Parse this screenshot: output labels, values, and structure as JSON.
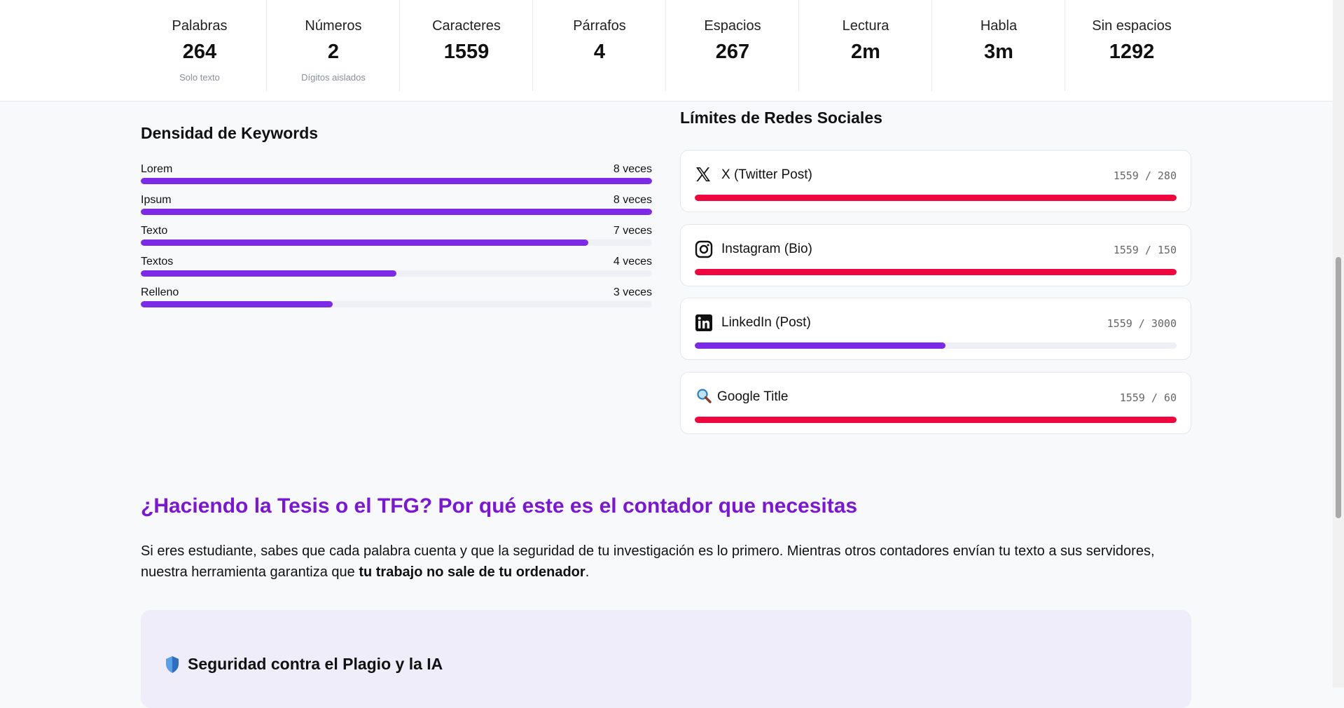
{
  "stats": [
    {
      "label": "Palabras",
      "value": 264,
      "note": "Solo texto"
    },
    {
      "label": "Números",
      "value": 2,
      "note": "Dígitos aislados"
    },
    {
      "label": "Caracteres",
      "value": 1559
    },
    {
      "label": "Párrafos",
      "value": 4
    },
    {
      "label": "Espacios",
      "value": 267
    },
    {
      "label": "Lectura",
      "value": "2m"
    },
    {
      "label": "Habla",
      "value": "3m"
    },
    {
      "label": "Sin espacios",
      "value": 1292
    }
  ],
  "keywords": {
    "title": "Densidad de Keywords",
    "items": [
      {
        "word": "Lorem",
        "count": 8,
        "count_label": "8 veces"
      },
      {
        "word": "Ipsum",
        "count": 8,
        "count_label": "8 veces"
      },
      {
        "word": "Texto",
        "count": 7,
        "count_label": "7 veces"
      },
      {
        "word": "Textos",
        "count": 4,
        "count_label": "4 veces"
      },
      {
        "word": "Relleno",
        "count": 3,
        "count_label": "3 veces"
      }
    ]
  },
  "social": {
    "title": "Límites de Redes Sociales",
    "items": [
      {
        "name": "X (Twitter Post)",
        "used": 1559,
        "limit": 280,
        "label": "1559 / 280"
      },
      {
        "name": "Instagram (Bio)",
        "used": 1559,
        "limit": 150,
        "label": "1559 / 150"
      },
      {
        "name": "LinkedIn (Post)",
        "used": 1559,
        "limit": 3000,
        "label": "1559 / 3000"
      },
      {
        "name": "Google Title",
        "used": 1559,
        "limit": 60,
        "label": "1559 / 60"
      }
    ]
  },
  "article": {
    "heading": "¿Haciendo la Tesis o el TFG? Por qué este es el contador que necesitas",
    "paragraph": [
      "Si eres estudiante, sabes que cada palabra cuenta y que la seguridad de tu investigación es lo primero. Mientras otros contadores envían tu texto a sus servidores, nuestra herramienta garantiza que ",
      "tu trabajo no sale de tu ordenador",
      "."
    ],
    "box_title": "Seguridad contra el Plagio y la IA"
  }
}
